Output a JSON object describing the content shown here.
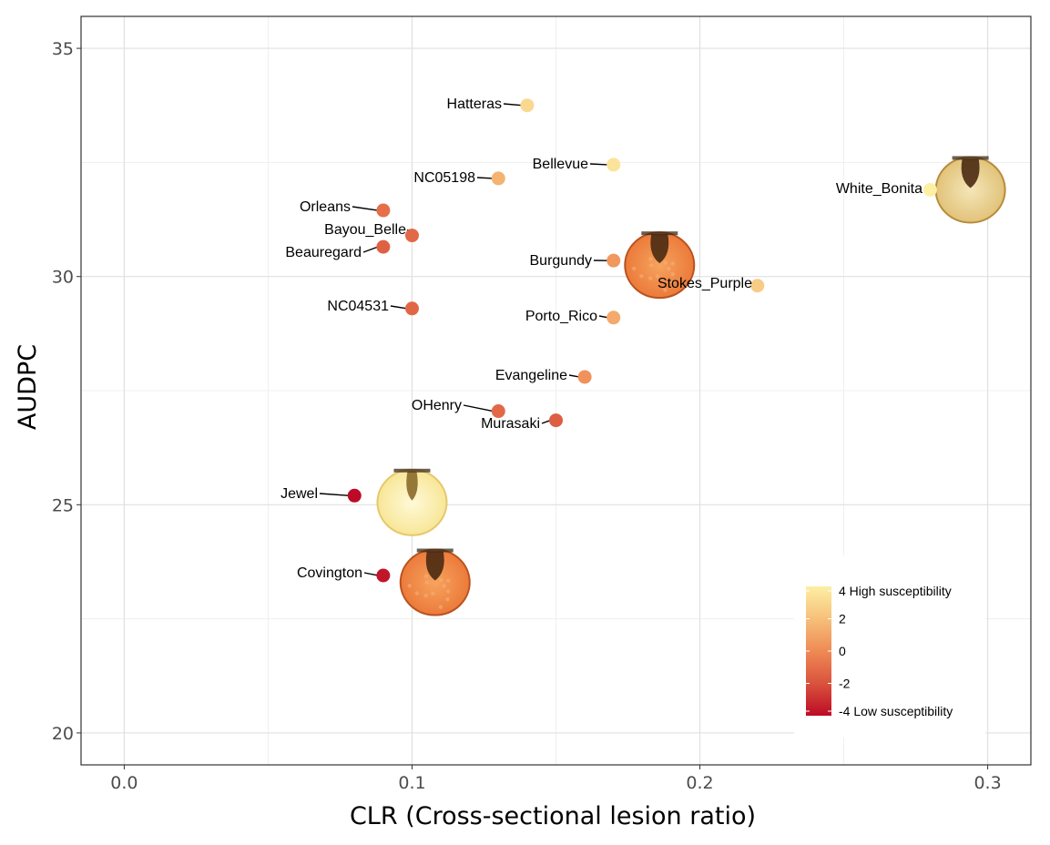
{
  "chart_data": {
    "type": "scatter",
    "xlabel": "CLR (Cross-sectional lesion ratio)",
    "ylabel": "AUDPC",
    "xlim": [
      -0.015,
      0.315
    ],
    "ylim": [
      19.3,
      35.7
    ],
    "x_ticks": [
      "0.0",
      "0.1",
      "0.2",
      "0.3"
    ],
    "y_ticks": [
      "20",
      "25",
      "30",
      "35"
    ],
    "grid": true,
    "points": [
      {
        "label": "Hatteras",
        "x": 0.14,
        "y": 33.75,
        "score": 3.0
      },
      {
        "label": "Bellevue",
        "x": 0.17,
        "y": 32.45,
        "score": 3.5
      },
      {
        "label": "NC05198",
        "x": 0.13,
        "y": 32.15,
        "score": 1.5
      },
      {
        "label": "White_Bonita",
        "x": 0.28,
        "y": 31.9,
        "score": 4.0
      },
      {
        "label": "Orleans",
        "x": 0.09,
        "y": 31.45,
        "score": -1.0
      },
      {
        "label": "Bayou_Belle",
        "x": 0.1,
        "y": 30.9,
        "score": -1.2
      },
      {
        "label": "Beauregard",
        "x": 0.09,
        "y": 30.65,
        "score": -1.5
      },
      {
        "label": "Burgundy",
        "x": 0.17,
        "y": 30.35,
        "score": 0.5
      },
      {
        "label": "Stokes_Purple",
        "x": 0.22,
        "y": 29.8,
        "score": 2.5
      },
      {
        "label": "NC04531",
        "x": 0.1,
        "y": 29.3,
        "score": -1.3
      },
      {
        "label": "Porto_Rico",
        "x": 0.17,
        "y": 29.1,
        "score": 1.2
      },
      {
        "label": "Evangeline",
        "x": 0.16,
        "y": 27.8,
        "score": 0.3
      },
      {
        "label": "OHenry",
        "x": 0.13,
        "y": 27.05,
        "score": -1.2
      },
      {
        "label": "Murasaki",
        "x": 0.15,
        "y": 26.85,
        "score": -1.6
      },
      {
        "label": "Jewel",
        "x": 0.08,
        "y": 25.2,
        "score": -4.0
      },
      {
        "label": "Covington",
        "x": 0.09,
        "y": 23.45,
        "score": -3.7
      }
    ],
    "legend": {
      "placement": "bottom-right",
      "labels": [
        "4 High susceptibility",
        "2",
        "0",
        "-2",
        "-4 Low susceptibility"
      ],
      "values": [
        4,
        2,
        0,
        -2,
        -4
      ],
      "colors": {
        "high": "#fdefa4",
        "mid": "#ef8a55",
        "low": "#bd0a26"
      }
    },
    "images": [
      {
        "name": "white-bonita-cross-section",
        "x": 0.294,
        "y": 31.9,
        "style": "white"
      },
      {
        "name": "burgundy-cross-section",
        "x": 0.186,
        "y": 30.25,
        "style": "orange"
      },
      {
        "name": "jewel-cross-section",
        "x": 0.1,
        "y": 25.05,
        "style": "yellow"
      },
      {
        "name": "covington-cross-section",
        "x": 0.108,
        "y": 23.3,
        "style": "orange"
      }
    ]
  }
}
